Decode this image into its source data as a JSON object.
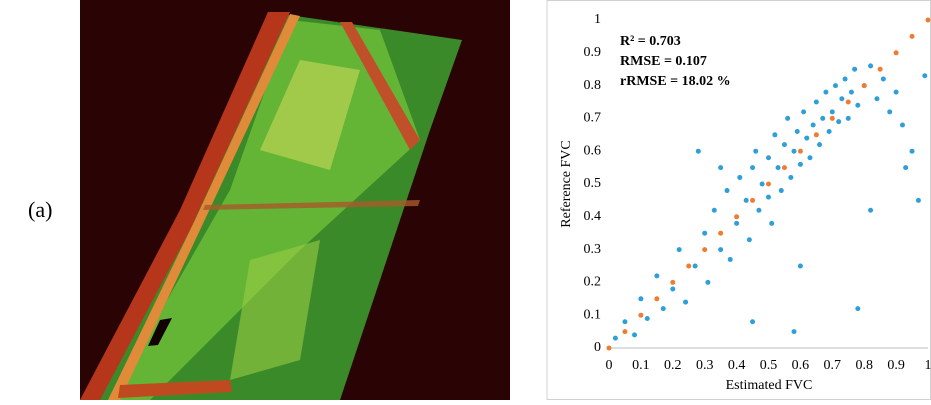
{
  "panel_label": "(a)",
  "chart_data": {
    "type": "scatter",
    "xlabel": "Estimated FVC",
    "ylabel": "Reference FVC",
    "annotations": [
      "R² = 0.703",
      "RMSE = 0.107",
      "rRMSE = 18.02 %"
    ],
    "xlim": [
      0,
      1
    ],
    "ylim": [
      0,
      1
    ],
    "xticks": [
      0,
      0.1,
      0.2,
      0.3,
      0.4,
      0.5,
      0.6,
      0.7,
      0.8,
      0.9,
      1
    ],
    "yticks": [
      0,
      0.1,
      0.2,
      0.3,
      0.4,
      0.5,
      0.6,
      0.7,
      0.8,
      0.9,
      1
    ],
    "series": [
      {
        "color": "#2e9fd8",
        "x": [
          0.02,
          0.05,
          0.08,
          0.1,
          0.12,
          0.15,
          0.17,
          0.2,
          0.22,
          0.24,
          0.27,
          0.3,
          0.31,
          0.33,
          0.35,
          0.37,
          0.38,
          0.4,
          0.41,
          0.43,
          0.44,
          0.45,
          0.46,
          0.47,
          0.48,
          0.5,
          0.5,
          0.51,
          0.52,
          0.53,
          0.54,
          0.55,
          0.56,
          0.57,
          0.58,
          0.59,
          0.6,
          0.61,
          0.62,
          0.63,
          0.64,
          0.65,
          0.66,
          0.67,
          0.68,
          0.69,
          0.7,
          0.71,
          0.72,
          0.73,
          0.74,
          0.75,
          0.76,
          0.77,
          0.78,
          0.8,
          0.82,
          0.84,
          0.86,
          0.88,
          0.9,
          0.92,
          0.95,
          0.97,
          0.99,
          0.78,
          0.58,
          0.45,
          0.6,
          0.28,
          0.35,
          0.82,
          0.93
        ],
        "values": [
          0.03,
          0.08,
          0.04,
          0.15,
          0.09,
          0.22,
          0.12,
          0.18,
          0.3,
          0.14,
          0.25,
          0.35,
          0.2,
          0.42,
          0.3,
          0.48,
          0.27,
          0.38,
          0.52,
          0.45,
          0.33,
          0.55,
          0.6,
          0.42,
          0.5,
          0.58,
          0.46,
          0.38,
          0.65,
          0.55,
          0.48,
          0.62,
          0.7,
          0.52,
          0.6,
          0.66,
          0.56,
          0.72,
          0.64,
          0.58,
          0.68,
          0.75,
          0.62,
          0.7,
          0.78,
          0.66,
          0.72,
          0.8,
          0.69,
          0.76,
          0.82,
          0.7,
          0.78,
          0.85,
          0.74,
          0.8,
          0.86,
          0.76,
          0.82,
          0.72,
          0.78,
          0.68,
          0.6,
          0.45,
          0.83,
          0.12,
          0.05,
          0.08,
          0.25,
          0.6,
          0.55,
          0.42,
          0.55
        ]
      },
      {
        "color": "#ed7d31",
        "x": [
          0,
          0.05,
          0.1,
          0.15,
          0.2,
          0.25,
          0.3,
          0.35,
          0.4,
          0.45,
          0.5,
          0.55,
          0.6,
          0.65,
          0.7,
          0.75,
          0.8,
          0.85,
          0.9,
          0.95,
          1
        ],
        "values": [
          0,
          0.05,
          0.1,
          0.15,
          0.2,
          0.25,
          0.3,
          0.35,
          0.4,
          0.45,
          0.5,
          0.55,
          0.6,
          0.65,
          0.7,
          0.75,
          0.8,
          0.85,
          0.9,
          0.95,
          1
        ]
      }
    ]
  }
}
